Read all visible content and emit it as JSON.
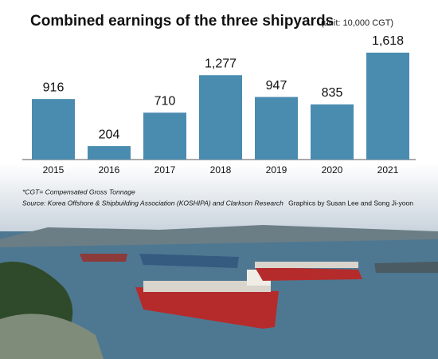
{
  "chart_data": {
    "type": "bar",
    "title": "Combined earnings of the three shipyards",
    "subtitle": "(unit: 10,000 CGT)",
    "categories": [
      "2015",
      "2016",
      "2017",
      "2018",
      "2019",
      "2020",
      "2021"
    ],
    "values": [
      916,
      204,
      710,
      1277,
      947,
      835,
      1618
    ],
    "value_labels": [
      "916",
      "204",
      "710",
      "1,277",
      "947",
      "835",
      "1,618"
    ],
    "color": "#4a8cb0",
    "notes": [
      "*CGT= Compensated Gross Tonnage",
      "Source: Korea Offshore & Shipbuilding Association (KOSHIPA) and Clarkson Research"
    ],
    "credit": "Graphics by Susan Lee and Song Ji-yoon"
  }
}
